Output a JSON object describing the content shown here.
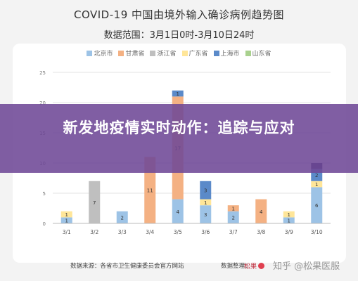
{
  "chart_data": {
    "type": "bar",
    "stacked": true,
    "title": "COVID-19 中国由境外输入确诊病例趋势图",
    "subtitle": "数据范围：3月1日0时-3月10日24时",
    "categories": [
      "3/1",
      "3/2",
      "3/3",
      "3/4",
      "3/5",
      "3/6",
      "3/7",
      "3/8",
      "3/9",
      "3/10"
    ],
    "ylim": [
      0,
      25
    ],
    "yticks": [
      0,
      5,
      10,
      15,
      20,
      25
    ],
    "grid": true,
    "legend_position": "top",
    "series": [
      {
        "name": "北京市",
        "color": "#9dc3e6",
        "values": [
          1,
          0,
          2,
          0,
          4,
          3,
          2,
          0,
          1,
          6
        ]
      },
      {
        "name": "甘肃省",
        "color": "#f4b183",
        "values": [
          0,
          0,
          0,
          11,
          17,
          0,
          1,
          4,
          0,
          0
        ]
      },
      {
        "name": "浙江省",
        "color": "#bfbfbf",
        "values": [
          0,
          7,
          0,
          0,
          0,
          0,
          0,
          0,
          0,
          0
        ]
      },
      {
        "name": "广东省",
        "color": "#ffe699",
        "values": [
          1,
          0,
          0,
          0,
          0,
          1,
          0,
          0,
          1,
          1
        ]
      },
      {
        "name": "上海市",
        "color": "#5b8ac9",
        "values": [
          0,
          0,
          0,
          0,
          1,
          3,
          0,
          0,
          0,
          2
        ]
      },
      {
        "name": "山东省",
        "color": "#a9d18e",
        "values": [
          0,
          0,
          0,
          0,
          0,
          0,
          0,
          0,
          0,
          0
        ]
      },
      {
        "name": "",
        "color": "#7b4a9e",
        "values": [
          0,
          0,
          0,
          0,
          0,
          0,
          0,
          0,
          0,
          0
        ]
      }
    ],
    "extra_segments": [
      {
        "category": "3/4",
        "color": "#8e3a5a",
        "value": 0
      },
      {
        "category": "3/10",
        "color": "#3b3b6b",
        "value": 1
      }
    ]
  },
  "banner": {
    "text": "新发地疫情实时动作：追踪与应对"
  },
  "footer": {
    "source": "数据来源：各省市卫生健康委员会官方网站",
    "organizer": "数据整理：",
    "logo_text": "松果",
    "watermark": "知乎 @松果医服"
  }
}
